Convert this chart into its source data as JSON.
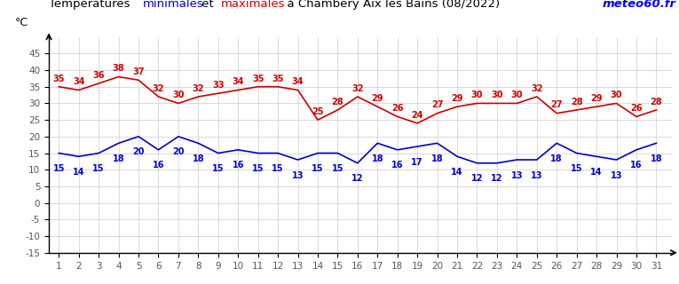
{
  "days": [
    1,
    2,
    3,
    4,
    5,
    6,
    7,
    8,
    9,
    10,
    11,
    12,
    13,
    14,
    15,
    16,
    17,
    18,
    19,
    20,
    21,
    22,
    23,
    24,
    25,
    26,
    27,
    28,
    29,
    30,
    31
  ],
  "min_temps": [
    15,
    14,
    15,
    18,
    20,
    16,
    20,
    18,
    15,
    16,
    15,
    15,
    13,
    15,
    15,
    12,
    18,
    16,
    17,
    18,
    14,
    12,
    12,
    13,
    13,
    18,
    15,
    14,
    13,
    16,
    18
  ],
  "max_temps": [
    35,
    34,
    36,
    38,
    37,
    32,
    30,
    32,
    33,
    34,
    35,
    35,
    34,
    25,
    28,
    32,
    29,
    26,
    24,
    27,
    29,
    30,
    30,
    30,
    32,
    27,
    28,
    29,
    30,
    26,
    28
  ],
  "min_color": "#0000cc",
  "max_color": "#cc0000",
  "watermark_color": "#0000ff",
  "ylabel": "°C",
  "ylim_bottom": -15,
  "ylim_top": 50,
  "yticks": [
    -15,
    -10,
    -5,
    0,
    5,
    10,
    15,
    20,
    25,
    30,
    35,
    40,
    45
  ],
  "ytick_labels": [
    "-15",
    "-10",
    "-5",
    "0",
    "5",
    "10",
    "15",
    "20",
    "25",
    "30",
    "35",
    "40",
    "45"
  ],
  "xlim_left": 0.5,
  "xlim_right": 31.8,
  "grid_color": "#cccccc",
  "bg_color": "#ffffff",
  "tick_fontsize": 7.5,
  "annot_fontsize": 7.0,
  "title_fontsize": 9.5,
  "watermark_fontsize": 9.5
}
